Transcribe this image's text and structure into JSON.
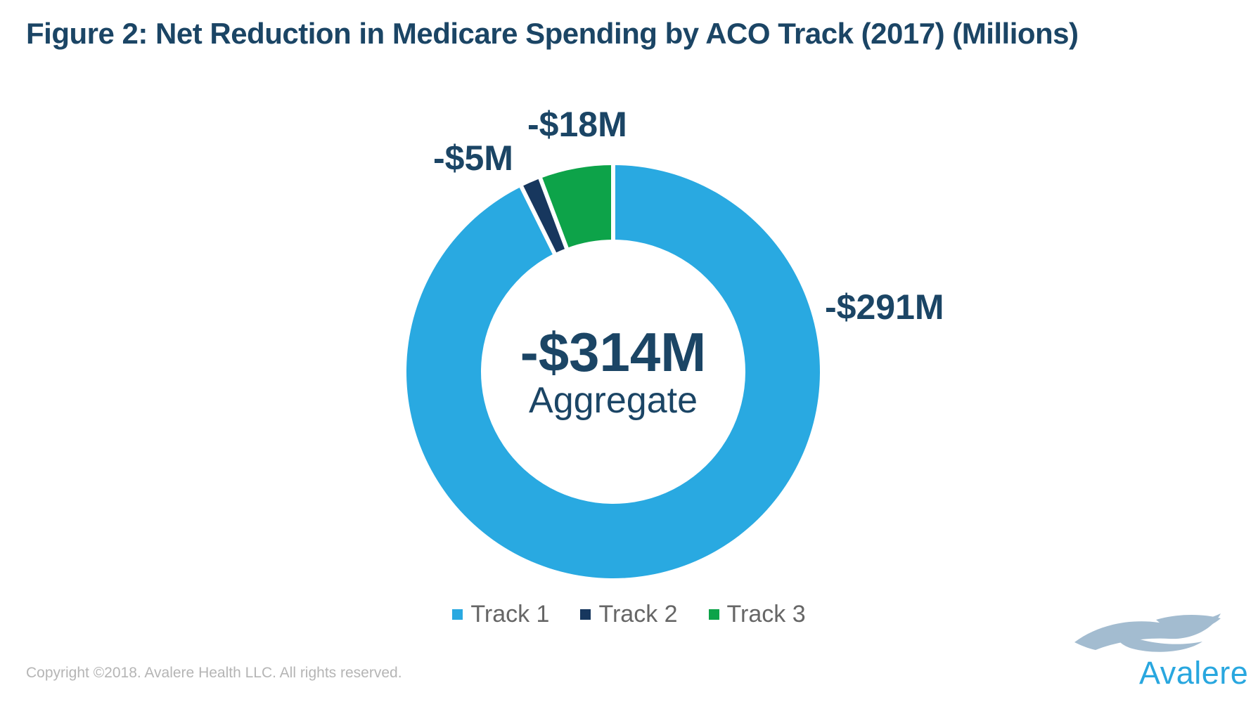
{
  "page": {
    "title": "Figure 2: Net Reduction in Medicare Spending by ACO Track (2017) (Millions)",
    "copyright": "Copyright ©2018. Avalere Health LLC. All rights reserved.",
    "logo": {
      "text": "Avalere"
    }
  },
  "chart_data": {
    "type": "pie",
    "subtype": "donut",
    "title": "Figure 2: Net Reduction in Medicare Spending by ACO Track (2017) (Millions)",
    "categories": [
      "Track 1",
      "Track 2",
      "Track 3"
    ],
    "series": [
      {
        "name": "Track 1",
        "value": -291,
        "label": "-$291M",
        "color": "#29A9E1"
      },
      {
        "name": "Track 2",
        "value": -5,
        "label": "-$5M",
        "color": "#17375E"
      },
      {
        "name": "Track 3",
        "value": -18,
        "label": "-$18M",
        "color": "#0DA349"
      }
    ],
    "total": -314,
    "center": {
      "value": "-$314M",
      "label": "Aggregate"
    },
    "start_angle_deg": 0,
    "direction": "clockwise",
    "hole_radius_ratio": 0.64,
    "slice_gap_color": "#FFFFFF",
    "legend_position": "bottom"
  },
  "colors": {
    "background": "#FFFFFF",
    "title_text": "#1B4565",
    "callout_text": "#1B4565",
    "center_text": "#1B4565",
    "legend_text": "#666666",
    "copyright_text": "#B5B5B5",
    "logo_swoosh": "#A3BCD0",
    "logo_text": "#29A7DF"
  }
}
